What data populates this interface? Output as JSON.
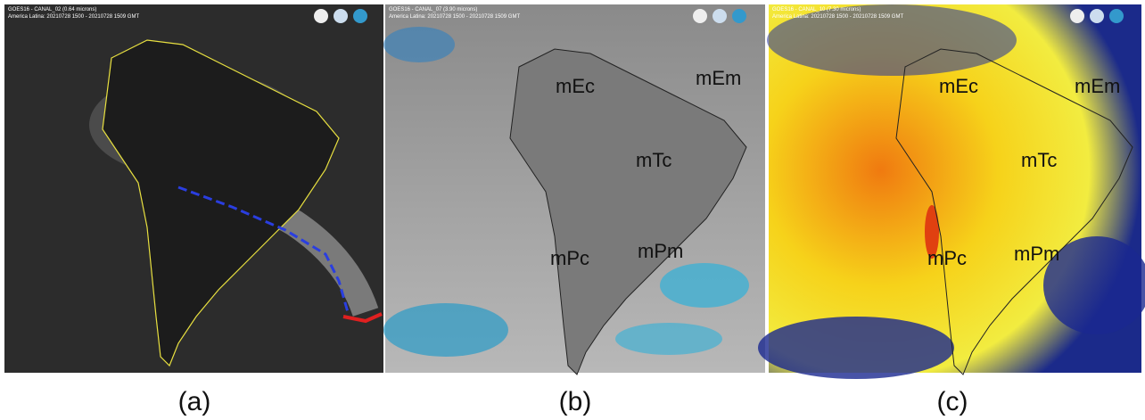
{
  "panels": [
    {
      "header": [
        "GOES16 - CANAL_02 (0.64 microns)",
        "America Latina: 20210728 1500 - 20210728 1509 GMT"
      ],
      "labels": [],
      "caption": "(a)"
    },
    {
      "header": [
        "GOES16 - CANAL_07 (3.90 microns)",
        "America Latina: 20210728 1500 - 20210728 1509 GMT"
      ],
      "labels": [
        "mEc",
        "mEm",
        "mTc",
        "mPc",
        "mPm"
      ],
      "caption": "(b)"
    },
    {
      "header": [
        "GOES16 - CANAL_10 (7.30 microns)",
        "America Latina: 20210728 1500 - 20210728 1509 GMT"
      ],
      "labels": [
        "mEc",
        "mEm",
        "mTc",
        "mPc",
        "mPm"
      ],
      "caption": "(c)"
    }
  ]
}
